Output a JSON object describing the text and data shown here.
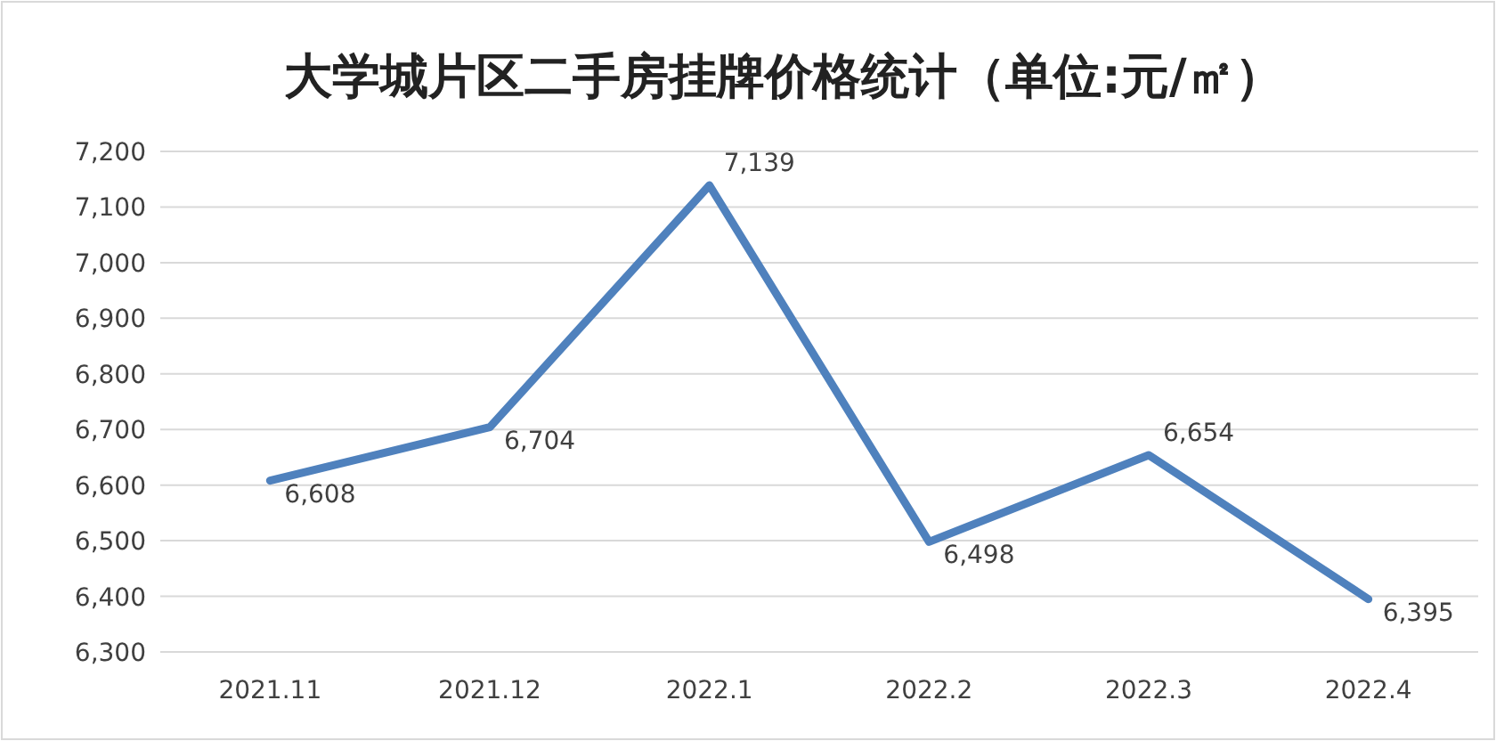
{
  "chart_data": {
    "type": "line",
    "title": "大学城片区二手房挂牌价格统计（单位:元/㎡）",
    "categories": [
      "2021.11",
      "2021.12",
      "2022.1",
      "2022.2",
      "2022.3",
      "2022.4"
    ],
    "series": [
      {
        "color": "#4f81bd",
        "values": [
          6608,
          6704,
          7139,
          6498,
          6654,
          6395
        ],
        "value_labels": [
          "6,608",
          "6,704",
          "7,139",
          "6,498",
          "6,654",
          "6,395"
        ]
      }
    ],
    "ylim": [
      6300,
      7200
    ],
    "yticks": [
      {
        "value": 6300,
        "label": "6,300"
      },
      {
        "value": 6400,
        "label": "6,400"
      },
      {
        "value": 6500,
        "label": "6,500"
      },
      {
        "value": 6600,
        "label": "6,600"
      },
      {
        "value": 6700,
        "label": "6,700"
      },
      {
        "value": 6800,
        "label": "6,800"
      },
      {
        "value": 6900,
        "label": "6,900"
      },
      {
        "value": 7000,
        "label": "7,000"
      },
      {
        "value": 7100,
        "label": "7,100"
      },
      {
        "value": 7200,
        "label": "7,200"
      }
    ],
    "grid": "y",
    "line_style": "solid"
  }
}
